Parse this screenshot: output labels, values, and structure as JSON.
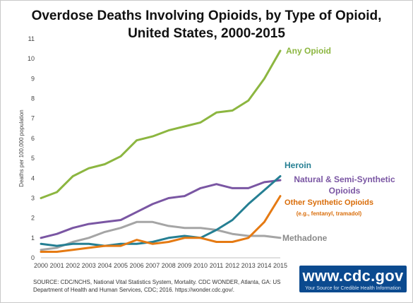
{
  "title_lines": [
    "Overdose Deaths Involving Opioids, by Type of Opioid,",
    "United States, 2000-2015"
  ],
  "source_text": "SOURCE: CDC/NCHS, National Vital Statistics System, Mortality. CDC WONDER, Atlanta, GA: US Department of Health and Human Services, CDC; 2016. https://wonder.cdc.gov/.",
  "logo": {
    "url": "www.cdc.gov",
    "tagline": "Your Source for Credible Health Information"
  },
  "chart_data": {
    "type": "line",
    "ylabel": "Deaths per 100,000 population",
    "xlabel": "",
    "ylim": [
      0,
      11
    ],
    "yticks": [
      0,
      1,
      2,
      3,
      4,
      5,
      6,
      7,
      8,
      9,
      10,
      11
    ],
    "x": [
      "2000",
      "2001",
      "2002",
      "2003",
      "2004",
      "2005",
      "2006",
      "2007",
      "2008",
      "2009",
      "2010",
      "2011",
      "2012",
      "2013",
      "2014",
      "2015"
    ],
    "grid": false,
    "series": [
      {
        "name": "Any Opioid",
        "color": "#8cb640",
        "label_lines": [
          "Any Opioid"
        ],
        "values": [
          3.0,
          3.3,
          4.1,
          4.5,
          4.7,
          5.1,
          5.9,
          6.1,
          6.4,
          6.6,
          6.8,
          7.3,
          7.4,
          7.9,
          9.0,
          10.4
        ]
      },
      {
        "name": "Heroin",
        "color": "#257f93",
        "label_lines": [
          "Heroin"
        ],
        "values": [
          0.7,
          0.6,
          0.7,
          0.7,
          0.6,
          0.7,
          0.7,
          0.8,
          1.0,
          1.1,
          1.0,
          1.4,
          1.9,
          2.7,
          3.4,
          4.1
        ]
      },
      {
        "name": "Natural & Semi-Synthetic Opioids",
        "color": "#7a56a3",
        "label_lines": [
          "Natural & Semi-Synthetic",
          "Opioids"
        ],
        "values": [
          1.0,
          1.2,
          1.5,
          1.7,
          1.8,
          1.9,
          2.3,
          2.7,
          3.0,
          3.1,
          3.5,
          3.7,
          3.5,
          3.5,
          3.8,
          3.9
        ]
      },
      {
        "name": "Other Synthetic Opioids",
        "color": "#e57a13",
        "label_lines": [
          "Other Synthetic Opioids",
          "(e.g., fentanyl, tramadol)"
        ],
        "values": [
          0.3,
          0.3,
          0.4,
          0.5,
          0.6,
          0.6,
          0.9,
          0.7,
          0.8,
          1.0,
          1.0,
          0.8,
          0.8,
          1.0,
          1.8,
          3.1
        ]
      },
      {
        "name": "Methadone",
        "color": "#a5a5a5",
        "label_lines": [
          "Methadone"
        ],
        "values": [
          0.4,
          0.5,
          0.8,
          1.0,
          1.3,
          1.5,
          1.8,
          1.8,
          1.6,
          1.5,
          1.5,
          1.4,
          1.2,
          1.1,
          1.1,
          1.0
        ]
      }
    ]
  }
}
